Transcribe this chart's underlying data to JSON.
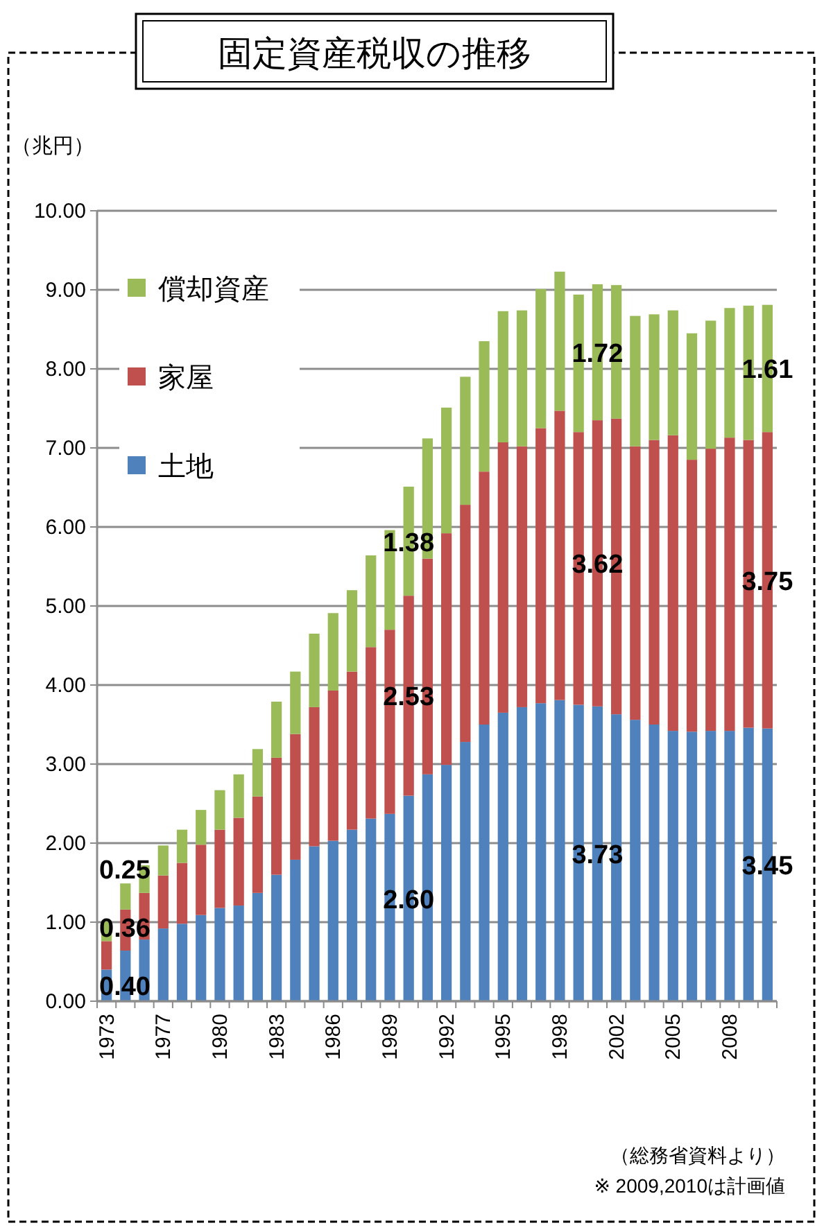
{
  "chart_data": {
    "type": "bar",
    "stacked": true,
    "title": "固定資産税収の推移",
    "ylabel": "（兆円）",
    "categories": [
      "1973",
      null,
      null,
      "1977",
      null,
      null,
      "1980",
      null,
      null,
      "1983",
      null,
      null,
      "1986",
      null,
      null,
      "1989",
      null,
      null,
      "1992",
      null,
      null,
      "1995",
      null,
      null,
      "1998",
      null,
      null,
      "2002",
      null,
      null,
      "2005",
      null,
      null,
      "2008",
      null,
      null
    ],
    "series": [
      {
        "name": "土地",
        "color": "#4f81bd",
        "values": [
          0.4,
          0.64,
          0.78,
          0.92,
          0.98,
          1.09,
          1.18,
          1.21,
          1.37,
          1.6,
          1.79,
          1.96,
          2.03,
          2.17,
          2.31,
          2.37,
          2.6,
          2.87,
          2.99,
          3.28,
          3.5,
          3.65,
          3.72,
          3.77,
          3.81,
          3.75,
          3.73,
          3.63,
          3.56,
          3.5,
          3.42,
          3.41,
          3.42,
          3.42,
          3.46,
          3.45
        ],
        "value_labels": [
          "0.40",
          null,
          null,
          null,
          null,
          null,
          null,
          null,
          null,
          null,
          null,
          null,
          null,
          null,
          null,
          null,
          "2.60",
          null,
          null,
          null,
          null,
          null,
          null,
          null,
          null,
          null,
          "3.73",
          null,
          null,
          null,
          null,
          null,
          null,
          null,
          null,
          "3.45"
        ]
      },
      {
        "name": "家屋",
        "color": "#c0504d",
        "values": [
          0.36,
          0.52,
          0.59,
          0.67,
          0.77,
          0.89,
          0.99,
          1.11,
          1.22,
          1.48,
          1.59,
          1.76,
          1.9,
          2.0,
          2.17,
          2.33,
          2.53,
          2.73,
          2.93,
          3.0,
          3.2,
          3.42,
          3.3,
          3.48,
          3.66,
          3.45,
          3.62,
          3.74,
          3.46,
          3.6,
          3.74,
          3.44,
          3.57,
          3.71,
          3.64,
          3.75
        ],
        "value_labels": [
          "0.36",
          null,
          null,
          null,
          null,
          null,
          null,
          null,
          null,
          null,
          null,
          null,
          null,
          null,
          null,
          null,
          "2.53",
          null,
          null,
          null,
          null,
          null,
          null,
          null,
          null,
          null,
          "3.62",
          null,
          null,
          null,
          null,
          null,
          null,
          null,
          null,
          "3.75"
        ]
      },
      {
        "name": "償却資産",
        "color": "#9bbb59",
        "values": [
          0.25,
          0.33,
          0.35,
          0.38,
          0.42,
          0.44,
          0.5,
          0.55,
          0.6,
          0.71,
          0.79,
          0.93,
          0.98,
          1.03,
          1.16,
          1.26,
          1.38,
          1.52,
          1.59,
          1.62,
          1.65,
          1.66,
          1.72,
          1.76,
          1.76,
          1.74,
          1.72,
          1.69,
          1.65,
          1.59,
          1.58,
          1.6,
          1.62,
          1.64,
          1.7,
          1.61
        ],
        "value_labels": [
          "0.25",
          null,
          null,
          null,
          null,
          null,
          null,
          null,
          null,
          null,
          null,
          null,
          null,
          null,
          null,
          null,
          "1.38",
          null,
          null,
          null,
          null,
          null,
          null,
          null,
          null,
          null,
          "1.72",
          null,
          null,
          null,
          null,
          null,
          null,
          null,
          null,
          "1.61"
        ]
      }
    ],
    "ylim": [
      0,
      10
    ],
    "yticks": [
      {
        "value": 0,
        "label": "0.00"
      },
      {
        "value": 1,
        "label": "1.00"
      },
      {
        "value": 2,
        "label": "2.00"
      },
      {
        "value": 3,
        "label": "3.00"
      },
      {
        "value": 4,
        "label": "4.00"
      },
      {
        "value": 5,
        "label": "5.00"
      },
      {
        "value": 6,
        "label": "6.00"
      },
      {
        "value": 7,
        "label": "7.00"
      },
      {
        "value": 8,
        "label": "8.00"
      },
      {
        "value": 9,
        "label": "9.00"
      },
      {
        "value": 10,
        "label": "10.00"
      }
    ],
    "grid": "y",
    "legend": "top left",
    "annotations": [
      "（総務省資料より）",
      "※ 2009,2010は計画値"
    ]
  }
}
